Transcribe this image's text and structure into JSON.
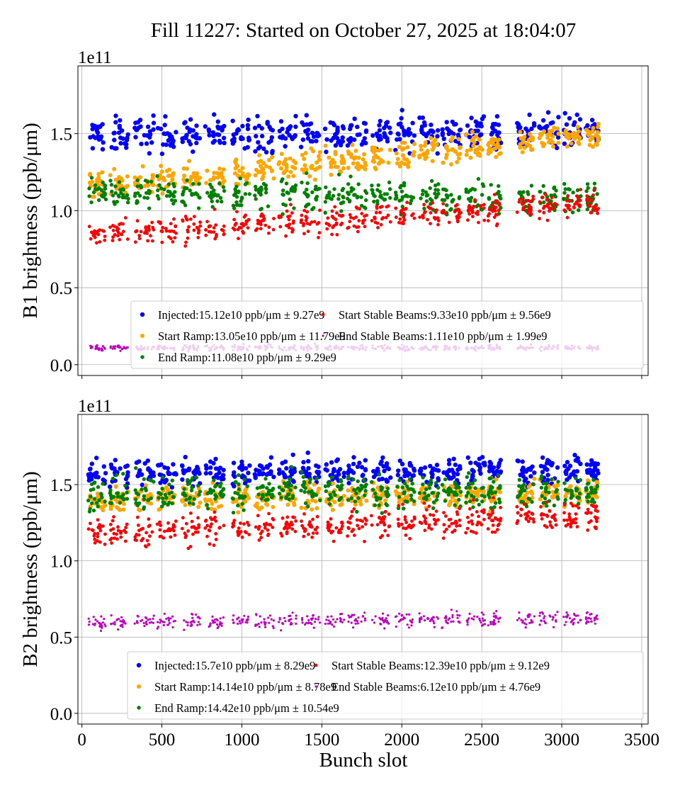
{
  "chart_data": {
    "title": "Fill 11227: Started on October 27, 2025 at 18:04:07",
    "type": "scatter",
    "xlabel": "Bunch slot",
    "xlim": [
      -25,
      3540
    ],
    "xticks": [
      0,
      500,
      1000,
      1500,
      2000,
      2500,
      3000,
      3500
    ],
    "grid": true,
    "legend_placement": "lower-right",
    "bunch_trains": [
      [
        40,
        150
      ],
      [
        175,
        290
      ],
      [
        330,
        450
      ],
      [
        470,
        590
      ],
      [
        625,
        740
      ],
      [
        770,
        890
      ],
      [
        940,
        1050
      ],
      [
        1080,
        1200
      ],
      [
        1230,
        1340
      ],
      [
        1370,
        1490
      ],
      [
        1520,
        1640
      ],
      [
        1660,
        1780
      ],
      [
        1810,
        1930
      ],
      [
        1960,
        2080
      ],
      [
        2110,
        2230
      ],
      [
        2250,
        2370
      ],
      [
        2400,
        2520
      ],
      [
        2540,
        2620
      ],
      [
        2720,
        2830
      ],
      [
        2860,
        2980
      ],
      [
        3010,
        3120
      ],
      [
        3150,
        3230
      ]
    ],
    "panels": [
      {
        "ylabel": "B1 brightness (ppb/μm)",
        "offset_label": "1e11",
        "ylim": [
          -0.07,
          1.94
        ],
        "yticks": [
          "0.0",
          "0.5",
          "1.0",
          "1.5"
        ],
        "yticks_values": [
          0,
          0.5,
          1.0,
          1.5
        ],
        "series": [
          {
            "name": "Injected",
            "legend": "Injected:15.12e10 ppb/μm ± 9.27e9",
            "color": "#0000ff",
            "mean_start": 1.49,
            "mean_end": 1.52,
            "spread": 0.09
          },
          {
            "name": "Start Ramp",
            "legend": "Start Ramp:13.05e10 ppb/μm ± 11.79e9",
            "color": "#ffa500",
            "mean_start": 1.15,
            "mean_end": 1.5,
            "spread": 0.07
          },
          {
            "name": "End Ramp",
            "legend": "End Ramp:11.08e10 ppb/μm ± 9.29e9",
            "color": "#008000",
            "mean_start": 1.12,
            "mean_end": 1.08,
            "spread": 0.08
          },
          {
            "name": "Start Stable Beams",
            "legend": "Start Stable Beams:9.33e10 ppb/μm ± 9.56e9",
            "color": "#ff0000",
            "mean_start": 0.84,
            "mean_end": 1.05,
            "spread": 0.07
          },
          {
            "name": "End Stable Beams",
            "legend": "End Stable Beams:1.11e10 ppb/μm ± 1.99e9",
            "color": "#bf00bf",
            "mean_start": 0.11,
            "mean_end": 0.11,
            "spread": 0.015
          }
        ]
      },
      {
        "ylabel": "B2 brightness (ppb/μm)",
        "offset_label": "1e11",
        "ylim": [
          -0.07,
          1.96
        ],
        "yticks": [
          "0.0",
          "0.5",
          "1.0",
          "1.5"
        ],
        "yticks_values": [
          0,
          0.5,
          1.0,
          1.5
        ],
        "series": [
          {
            "name": "Injected",
            "legend": "Injected:15.7e10 ppb/μm ± 8.29e9",
            "color": "#0000ff",
            "mean_start": 1.57,
            "mean_end": 1.6,
            "spread": 0.07
          },
          {
            "name": "Start Ramp",
            "legend": "Start Ramp:14.14e10 ppb/μm ± 8.78e9",
            "color": "#ffa500",
            "mean_start": 1.4,
            "mean_end": 1.45,
            "spread": 0.07
          },
          {
            "name": "End Ramp",
            "legend": "End Ramp:14.42e10 ppb/μm ± 10.54e9",
            "color": "#008000",
            "mean_start": 1.45,
            "mean_end": 1.45,
            "spread": 0.09
          },
          {
            "name": "Start Stable Beams",
            "legend": "Start Stable Beams:12.39e10 ppb/μm ± 9.12e9",
            "color": "#ff0000",
            "mean_start": 1.18,
            "mean_end": 1.3,
            "spread": 0.08
          },
          {
            "name": "End Stable Beams",
            "legend": "End Stable Beams:6.12e10 ppb/μm ± 4.76e9",
            "color": "#bf00bf",
            "mean_start": 0.6,
            "mean_end": 0.62,
            "spread": 0.04
          }
        ]
      }
    ]
  }
}
